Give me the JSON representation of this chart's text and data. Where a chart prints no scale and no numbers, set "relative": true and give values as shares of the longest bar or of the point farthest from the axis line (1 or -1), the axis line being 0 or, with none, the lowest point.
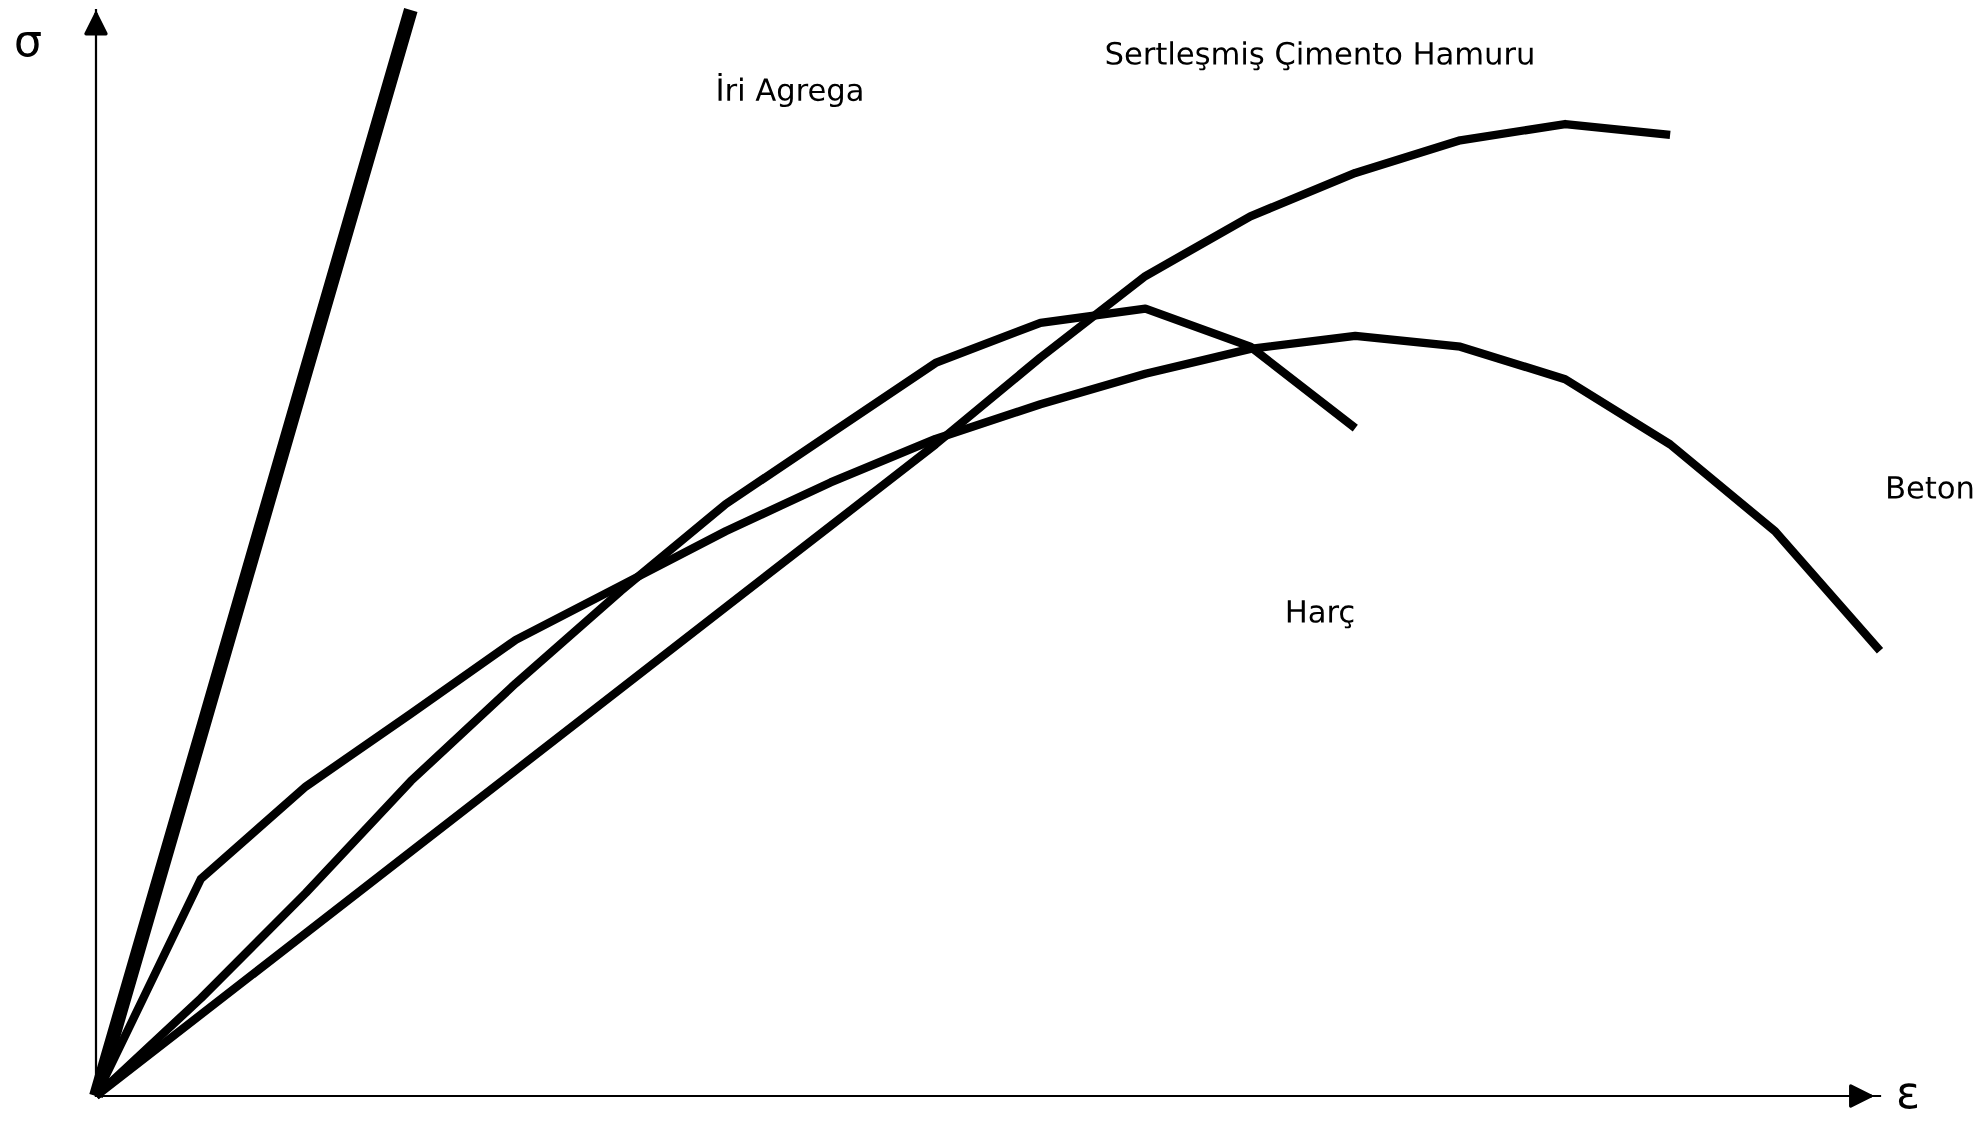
{
  "chart_data": {
    "type": "line",
    "relative": true,
    "xlabel": "ε",
    "ylabel": "σ",
    "marker": "none",
    "line_style": "solid",
    "categories": [
      null,
      null,
      null,
      null,
      null,
      null,
      null,
      null,
      null,
      null,
      null,
      null,
      null,
      null,
      null,
      null,
      null,
      null
    ],
    "series": [
      {
        "color": "#000000",
        "values": [
          0,
          0.333,
          0.667,
          1,
          null,
          null,
          null,
          null,
          null,
          null,
          null,
          null,
          null,
          null,
          null,
          null,
          null,
          null
        ]
      },
      {
        "color": "#000000",
        "values": [
          0,
          0.075,
          0.15,
          0.225,
          0.3,
          0.375,
          0.45,
          0.525,
          0.6,
          0.68,
          0.755,
          0.81,
          0.85,
          0.88,
          0.895,
          0.885,
          null,
          null
        ]
      },
      {
        "color": "#000000",
        "values": [
          0,
          0.09,
          0.187,
          0.29,
          0.38,
          0.465,
          0.545,
          0.61,
          0.675,
          0.712,
          0.725,
          0.69,
          0.615,
          null,
          null,
          null,
          null,
          null
        ]
      },
      {
        "color": "#000000",
        "values": [
          0,
          0.2,
          0.285,
          0.352,
          0.42,
          0.47,
          0.52,
          0.565,
          0.605,
          0.637,
          0.665,
          0.688,
          0.7,
          0.69,
          0.66,
          0.6,
          0.52,
          0.41
        ]
      }
    ],
    "annotations": [
      "İri Agrega",
      "Sertleşmiş Çimento Hamuru",
      "Beton",
      "Harç"
    ]
  }
}
